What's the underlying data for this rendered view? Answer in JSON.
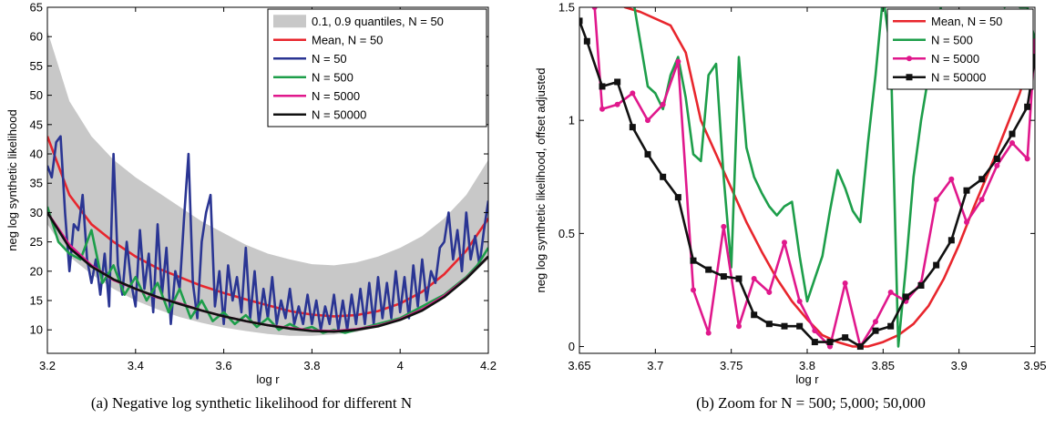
{
  "chart_data": [
    {
      "type": "line",
      "caption": "(a) Negative log synthetic likelihood for different N",
      "xlabel": "log r",
      "ylabel": "neg log synthetic likelihood",
      "xlim": [
        3.2,
        4.2
      ],
      "ylim": [
        6,
        65
      ],
      "xticks": [
        3.2,
        3.4,
        3.6,
        3.8,
        4,
        4.2
      ],
      "yticks": [
        10,
        15,
        20,
        25,
        30,
        35,
        40,
        45,
        50,
        55,
        60,
        65
      ],
      "grid": false,
      "legend": "top-right",
      "band": {
        "name": "0.1, 0.9 quantiles, N = 50",
        "color": "#c8c8c8",
        "x": [
          3.2,
          3.25,
          3.3,
          3.35,
          3.4,
          3.45,
          3.5,
          3.55,
          3.6,
          3.65,
          3.7,
          3.75,
          3.8,
          3.85,
          3.9,
          3.95,
          4.0,
          4.05,
          4.1,
          4.15,
          4.2
        ],
        "upper": [
          61,
          49,
          43,
          39,
          36,
          33.5,
          31,
          28.5,
          26.5,
          24.5,
          23,
          22,
          21.2,
          21,
          21.5,
          22.5,
          24,
          26,
          29,
          33,
          39
        ],
        "lower": [
          28,
          22.5,
          19.5,
          17,
          15,
          13.5,
          12.2,
          11.2,
          10.4,
          9.8,
          9.3,
          9,
          9,
          9.2,
          9.6,
          10.5,
          12,
          13.5,
          15.5,
          18.5,
          22
        ]
      },
      "series": [
        {
          "name": "Mean, N = 50",
          "color": "#e8262d",
          "x": [
            3.2,
            3.25,
            3.3,
            3.35,
            3.4,
            3.45,
            3.5,
            3.55,
            3.6,
            3.65,
            3.7,
            3.75,
            3.8,
            3.85,
            3.9,
            3.95,
            4.0,
            4.05,
            4.1,
            4.15,
            4.2
          ],
          "y": [
            43,
            33,
            28,
            25,
            22.5,
            20.5,
            19,
            17.5,
            16.3,
            15.2,
            14.2,
            13.2,
            12.6,
            12.3,
            12.5,
            13.2,
            14.5,
            16.5,
            19.5,
            23.5,
            29
          ]
        },
        {
          "name": "N = 50",
          "color": "#2a3593",
          "x": [
            3.2,
            3.21,
            3.22,
            3.23,
            3.24,
            3.25,
            3.26,
            3.27,
            3.28,
            3.29,
            3.3,
            3.31,
            3.32,
            3.33,
            3.34,
            3.35,
            3.36,
            3.37,
            3.38,
            3.39,
            3.4,
            3.41,
            3.42,
            3.43,
            3.44,
            3.45,
            3.46,
            3.47,
            3.48,
            3.49,
            3.5,
            3.51,
            3.52,
            3.53,
            3.54,
            3.55,
            3.56,
            3.57,
            3.58,
            3.59,
            3.6,
            3.61,
            3.62,
            3.63,
            3.64,
            3.65,
            3.66,
            3.67,
            3.68,
            3.69,
            3.7,
            3.71,
            3.72,
            3.73,
            3.74,
            3.75,
            3.76,
            3.77,
            3.78,
            3.79,
            3.8,
            3.81,
            3.82,
            3.83,
            3.84,
            3.85,
            3.86,
            3.87,
            3.88,
            3.89,
            3.9,
            3.91,
            3.92,
            3.93,
            3.94,
            3.95,
            3.96,
            3.97,
            3.98,
            3.99,
            4.0,
            4.01,
            4.02,
            4.03,
            4.04,
            4.05,
            4.06,
            4.07,
            4.08,
            4.09,
            4.1,
            4.11,
            4.12,
            4.13,
            4.14,
            4.15,
            4.16,
            4.17,
            4.18,
            4.19,
            4.2
          ],
          "y": [
            38,
            36,
            42,
            43,
            30,
            20,
            28,
            27,
            33,
            22,
            18,
            22,
            16,
            23,
            14,
            40,
            21,
            16,
            25,
            18,
            14,
            27,
            17,
            23,
            13,
            28,
            16,
            24,
            11,
            20,
            17,
            29,
            40,
            18,
            12,
            25,
            30,
            33,
            14,
            20,
            11,
            21,
            15,
            19,
            13,
            24,
            12,
            20,
            11,
            17,
            12,
            19,
            11,
            15,
            12,
            17,
            11,
            14,
            11,
            16,
            11,
            15,
            10,
            14,
            11,
            16,
            10,
            15,
            10,
            16,
            11,
            17,
            11,
            18,
            11,
            19,
            12,
            18,
            12,
            20,
            13,
            19,
            12,
            21,
            14,
            22,
            15,
            20,
            18,
            24,
            25,
            30,
            22,
            27,
            20,
            30,
            22,
            26,
            21,
            27,
            32
          ]
        },
        {
          "name": "N = 500",
          "color": "#1d9e4a",
          "x": [
            3.2,
            3.225,
            3.25,
            3.275,
            3.3,
            3.325,
            3.35,
            3.375,
            3.4,
            3.425,
            3.45,
            3.475,
            3.5,
            3.525,
            3.55,
            3.575,
            3.6,
            3.625,
            3.65,
            3.675,
            3.7,
            3.725,
            3.75,
            3.775,
            3.8,
            3.825,
            3.85,
            3.875,
            3.9,
            3.925,
            3.95,
            3.975,
            4.0,
            4.025,
            4.05,
            4.075,
            4.1,
            4.125,
            4.15,
            4.175,
            4.2
          ],
          "y": [
            31,
            25,
            23,
            22,
            27,
            18,
            21,
            16,
            19,
            15,
            18,
            13,
            17,
            12,
            15,
            11.5,
            13,
            11,
            12.5,
            10.5,
            12,
            10,
            11,
            10,
            10.5,
            9.5,
            10,
            9.5,
            10,
            10.5,
            11,
            11.5,
            12,
            13,
            14,
            15,
            16,
            17.5,
            19,
            21,
            24
          ]
        },
        {
          "name": "N = 5000",
          "color": "#e0188c",
          "x": [
            3.2,
            3.25,
            3.3,
            3.35,
            3.4,
            3.45,
            3.5,
            3.55,
            3.6,
            3.65,
            3.7,
            3.75,
            3.8,
            3.85,
            3.9,
            3.95,
            4.0,
            4.05,
            4.1,
            4.15,
            4.2
          ],
          "y": [
            30,
            24.5,
            21,
            18.5,
            17,
            15.5,
            14.5,
            13.3,
            12.3,
            11.5,
            10.8,
            10.3,
            9.9,
            9.8,
            10.1,
            10.7,
            11.8,
            13.5,
            15.8,
            18.8,
            22.5
          ]
        },
        {
          "name": "N = 50000",
          "color": "#111111",
          "x": [
            3.2,
            3.25,
            3.3,
            3.35,
            3.4,
            3.45,
            3.5,
            3.55,
            3.6,
            3.65,
            3.7,
            3.75,
            3.8,
            3.85,
            3.9,
            3.95,
            4.0,
            4.05,
            4.1,
            4.15,
            4.2
          ],
          "y": [
            30,
            24,
            20.8,
            18.6,
            17,
            15.6,
            14.4,
            13.3,
            12.3,
            11.5,
            10.8,
            10.2,
            9.8,
            9.7,
            10,
            10.6,
            11.7,
            13.3,
            15.6,
            18.7,
            22.5
          ]
        }
      ]
    },
    {
      "type": "line",
      "caption": "(b) Zoom for N = 500; 5,000; 50,000",
      "xlabel": "log r",
      "ylabel": "neg log synthetic likelihood, offset adjusted",
      "xlim": [
        3.65,
        3.95
      ],
      "ylim": [
        -0.03,
        1.5
      ],
      "xticks": [
        3.65,
        3.7,
        3.75,
        3.8,
        3.85,
        3.9,
        3.95
      ],
      "yticks": [
        0,
        0.5,
        1,
        1.5
      ],
      "grid": false,
      "legend": "top-right",
      "series": [
        {
          "name": "Mean, N = 50",
          "color": "#e8262d",
          "x": [
            3.66,
            3.67,
            3.68,
            3.69,
            3.7,
            3.71,
            3.72,
            3.73,
            3.74,
            3.75,
            3.76,
            3.77,
            3.78,
            3.79,
            3.8,
            3.81,
            3.82,
            3.83,
            3.84,
            3.85,
            3.86,
            3.87,
            3.88,
            3.89,
            3.9,
            3.91,
            3.92,
            3.93,
            3.94,
            3.95
          ],
          "y": [
            1.6,
            1.55,
            1.5,
            1.48,
            1.45,
            1.42,
            1.3,
            1.0,
            0.85,
            0.7,
            0.55,
            0.42,
            0.3,
            0.2,
            0.12,
            0.05,
            0.02,
            0.0,
            0.0,
            0.02,
            0.05,
            0.1,
            0.18,
            0.3,
            0.45,
            0.62,
            0.78,
            0.95,
            1.12,
            1.33
          ]
        },
        {
          "name": "N = 500",
          "color": "#1d9e4a",
          "x": [
            3.66,
            3.675,
            3.685,
            3.69,
            3.695,
            3.7,
            3.705,
            3.71,
            3.715,
            3.72,
            3.725,
            3.73,
            3.735,
            3.74,
            3.745,
            3.75,
            3.755,
            3.76,
            3.765,
            3.77,
            3.775,
            3.78,
            3.785,
            3.79,
            3.795,
            3.8,
            3.805,
            3.81,
            3.815,
            3.82,
            3.825,
            3.83,
            3.835,
            3.84,
            3.845,
            3.85,
            3.855,
            3.86,
            3.865,
            3.87,
            3.875,
            3.88,
            3.885,
            3.89,
            3.895,
            3.9,
            3.905,
            3.91,
            3.915,
            3.92,
            3.925,
            3.93,
            3.935,
            3.94,
            3.945,
            3.95
          ],
          "y": [
            1.7,
            1.75,
            1.55,
            1.35,
            1.15,
            1.12,
            1.05,
            1.2,
            1.28,
            1.1,
            0.85,
            0.82,
            1.2,
            1.25,
            0.75,
            0.35,
            1.28,
            0.88,
            0.75,
            0.68,
            0.62,
            0.58,
            0.62,
            0.64,
            0.4,
            0.2,
            0.3,
            0.4,
            0.6,
            0.78,
            0.7,
            0.6,
            0.55,
            0.9,
            1.2,
            1.55,
            1.3,
            0.0,
            0.35,
            0.75,
            1.0,
            1.2,
            1.35,
            1.6,
            1.75,
            1.8,
            1.6,
            1.7,
            1.8,
            1.7,
            1.6,
            1.5,
            1.6,
            1.5,
            1.5,
            1.35
          ]
        },
        {
          "name": "N = 5000",
          "color": "#e0188c",
          "x": [
            3.66,
            3.665,
            3.675,
            3.685,
            3.695,
            3.705,
            3.715,
            3.725,
            3.735,
            3.745,
            3.755,
            3.765,
            3.775,
            3.785,
            3.795,
            3.805,
            3.815,
            3.825,
            3.835,
            3.845,
            3.855,
            3.865,
            3.875,
            3.885,
            3.895,
            3.905,
            3.915,
            3.925,
            3.935,
            3.945,
            3.95
          ],
          "y": [
            1.5,
            1.05,
            1.07,
            1.12,
            1.0,
            1.07,
            1.26,
            0.25,
            0.06,
            0.53,
            0.09,
            0.3,
            0.24,
            0.46,
            0.2,
            0.07,
            0.0,
            0.28,
            0.0,
            0.11,
            0.24,
            0.2,
            0.28,
            0.65,
            0.74,
            0.55,
            0.65,
            0.8,
            0.9,
            0.83,
            1.35
          ]
        },
        {
          "name": "N = 50000",
          "color": "#111111",
          "x": [
            3.65,
            3.655,
            3.665,
            3.675,
            3.685,
            3.695,
            3.705,
            3.715,
            3.725,
            3.735,
            3.745,
            3.755,
            3.765,
            3.775,
            3.785,
            3.795,
            3.805,
            3.815,
            3.825,
            3.835,
            3.845,
            3.855,
            3.865,
            3.875,
            3.885,
            3.895,
            3.905,
            3.915,
            3.925,
            3.935,
            3.945,
            3.95
          ],
          "y": [
            1.44,
            1.35,
            1.15,
            1.17,
            0.97,
            0.85,
            0.75,
            0.66,
            0.38,
            0.34,
            0.31,
            0.3,
            0.14,
            0.1,
            0.09,
            0.09,
            0.02,
            0.02,
            0.04,
            0.0,
            0.07,
            0.09,
            0.22,
            0.27,
            0.36,
            0.47,
            0.69,
            0.74,
            0.83,
            0.94,
            1.06,
            1.28
          ]
        }
      ],
      "markers": {
        "N = 5000": "dot",
        "N = 50000": "square"
      }
    }
  ]
}
